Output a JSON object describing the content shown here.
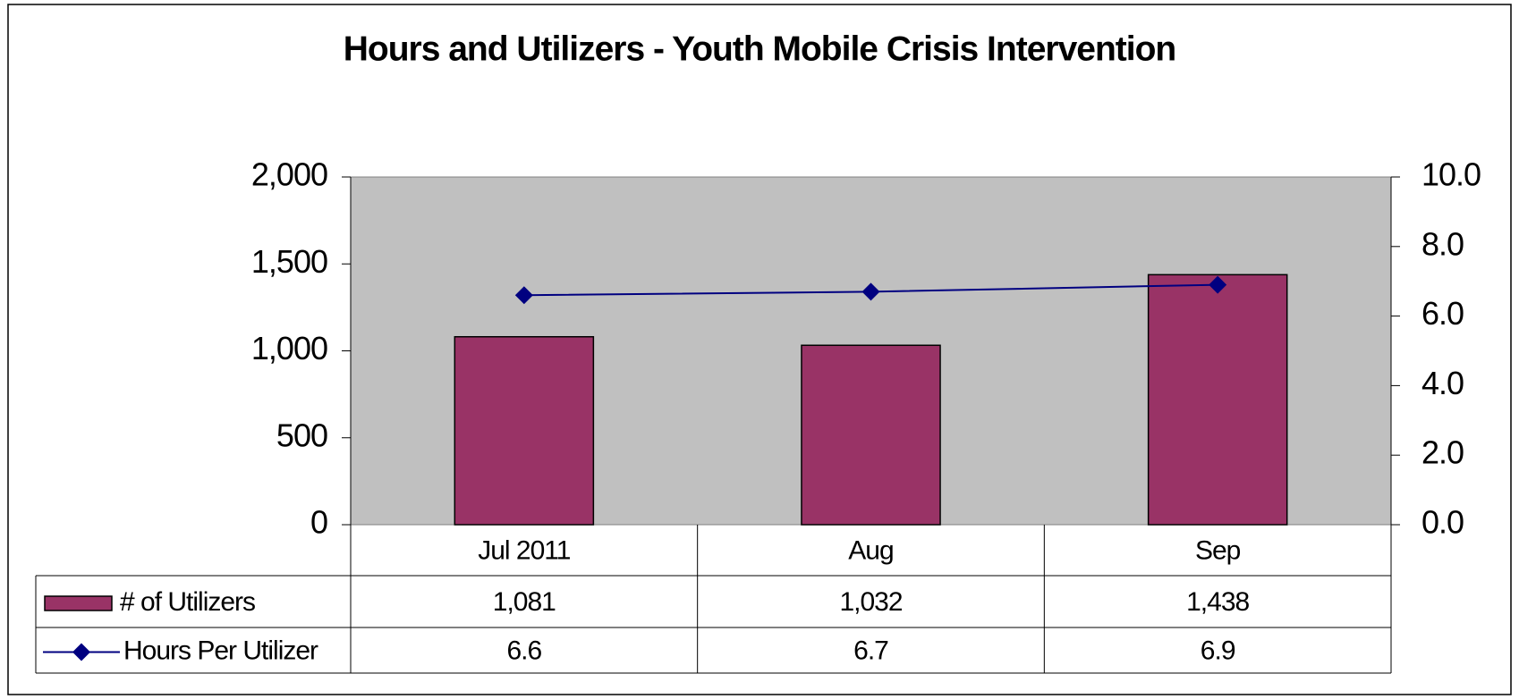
{
  "chart_data": {
    "type": "bar",
    "title": "Hours and Utilizers - Youth Mobile Crisis Intervention",
    "categories": [
      "Jul 2011",
      "Aug",
      "Sep"
    ],
    "series": [
      {
        "name": "# of Utilizers",
        "color": "#993366",
        "values": [
          1081,
          1032,
          1438
        ],
        "value_labels": [
          "1,081",
          "1,032",
          "1,438"
        ]
      },
      {
        "name": "Hours Per Utilizer",
        "color": "#000080",
        "type": "line",
        "axis": "y2",
        "values": [
          6.6,
          6.7,
          6.9
        ]
      }
    ],
    "ylim": [
      0,
      2000
    ],
    "yticks": [
      0,
      500,
      {
        "value": 1000,
        "label": "1,000"
      },
      {
        "value": 1500,
        "label": "1,500"
      },
      {
        "value": 2000,
        "label": "2,000"
      }
    ],
    "y2lim": [
      0,
      10
    ],
    "y2ticks": [
      {
        "value": 0,
        "label": "0.0"
      },
      {
        "value": 2,
        "label": "2.0"
      },
      {
        "value": 4,
        "label": "4.0"
      },
      {
        "value": 6,
        "label": "6.0"
      },
      {
        "value": 8,
        "label": "8.0"
      },
      {
        "value": 10,
        "label": "10.0"
      }
    ],
    "plot_background": "#c0c0c0"
  }
}
